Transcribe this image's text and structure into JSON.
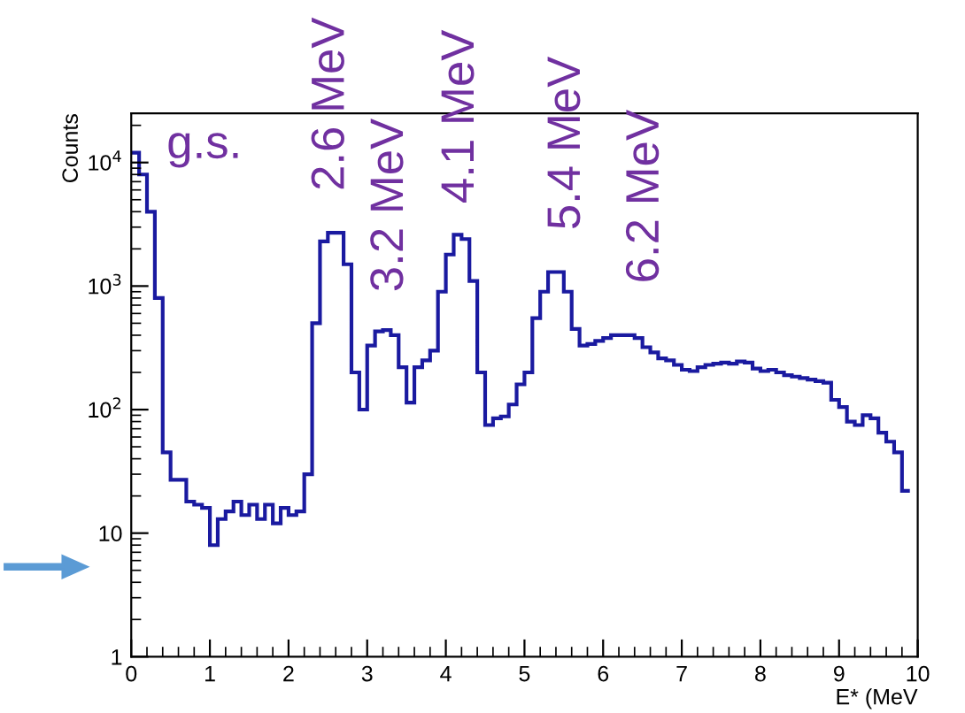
{
  "chart_data": {
    "type": "histogram",
    "xlabel": "E* (MeV",
    "ylabel": "Counts",
    "bins": [
      0,
      0.1,
      0.2,
      0.3,
      0.4,
      0.5,
      0.6,
      0.7,
      0.8,
      0.9,
      1.0,
      1.1,
      1.2,
      1.3,
      1.4,
      1.5,
      1.6,
      1.7,
      1.8,
      1.9,
      2.0,
      2.1,
      2.2,
      2.3,
      2.4,
      2.5,
      2.6,
      2.7,
      2.8,
      2.9,
      3.0,
      3.1,
      3.2,
      3.3,
      3.4,
      3.5,
      3.6,
      3.7,
      3.8,
      3.9,
      4.0,
      4.1,
      4.2,
      4.3,
      4.4,
      4.5,
      4.6,
      4.7,
      4.8,
      4.9,
      5.0,
      5.1,
      5.2,
      5.3,
      5.4,
      5.5,
      5.6,
      5.7,
      5.8,
      5.9,
      6.0,
      6.1,
      6.2,
      6.3,
      6.4,
      6.5,
      6.6,
      6.7,
      6.8,
      6.9,
      7.0,
      7.1,
      7.2,
      7.3,
      7.4,
      7.5,
      7.6,
      7.7,
      7.8,
      7.9,
      8.0,
      8.1,
      8.2,
      8.3,
      8.4,
      8.5,
      8.6,
      8.7,
      8.8,
      8.9,
      9.0,
      9.1,
      9.2,
      9.3,
      9.4,
      9.5,
      9.6,
      9.7,
      9.8,
      9.9
    ],
    "values": [
      12000,
      8000,
      4000,
      800,
      45,
      27,
      27,
      18,
      17,
      16,
      8,
      13,
      15,
      18,
      14,
      17,
      13,
      17,
      12,
      16,
      14,
      15,
      30,
      500,
      2300,
      2700,
      2700,
      1500,
      200,
      100,
      330,
      430,
      440,
      400,
      220,
      114,
      220,
      250,
      300,
      900,
      1800,
      2600,
      2400,
      1100,
      200,
      75,
      85,
      88,
      110,
      160,
      200,
      550,
      900,
      1300,
      1300,
      900,
      450,
      330,
      340,
      360,
      380,
      400,
      400,
      400,
      380,
      320,
      290,
      260,
      250,
      230,
      210,
      205,
      220,
      230,
      235,
      240,
      235,
      245,
      240,
      215,
      205,
      210,
      200,
      190,
      185,
      180,
      175,
      170,
      165,
      120,
      105,
      80,
      75,
      90,
      85,
      65,
      55,
      45,
      22
    ],
    "color": "#1a1aa0",
    "log": "y",
    "xlim": [
      0,
      10
    ],
    "ylim": [
      1,
      25000
    ],
    "xticks": [
      0,
      1,
      2,
      3,
      4,
      5,
      6,
      7,
      8,
      9,
      10
    ],
    "yticks": [
      1,
      10,
      {
        "value": 100,
        "label": "10$^{2}$"
      },
      {
        "value": 1000,
        "label": "10$^{3}$"
      },
      {
        "value": 10000,
        "label": "10$^{4}$"
      }
    ],
    "grid": false,
    "annotations": [
      "g.s.",
      "2.6 MeV",
      "3.2 MeV",
      "4.1 MeV",
      "5.4 MeV",
      "6.2 MeV"
    ]
  }
}
